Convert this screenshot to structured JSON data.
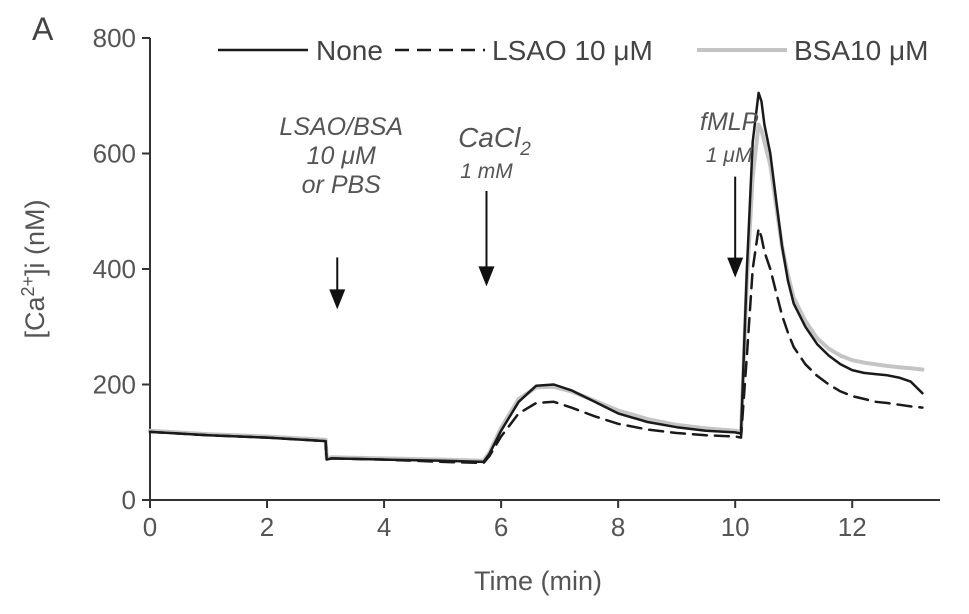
{
  "panel_label": "A",
  "chart_data": {
    "type": "line",
    "xlabel": "Time (min)",
    "ylabel": "[Ca",
    "ylabel_sup": "2+",
    "ylabel_suffix": "]i (nM)",
    "xlim": [
      0,
      13.5
    ],
    "ylim": [
      0,
      800
    ],
    "x_ticks": [
      0,
      2,
      4,
      6,
      8,
      10,
      12
    ],
    "y_ticks": [
      0,
      200,
      400,
      600,
      800
    ],
    "legend": {
      "position": "top"
    },
    "series": [
      {
        "name": "None",
        "color": "#1a1a1a",
        "dash": "solid",
        "x": [
          0,
          1,
          2,
          3,
          3.02,
          3.1,
          4,
          5,
          5.7,
          5.8,
          6.0,
          6.3,
          6.6,
          6.9,
          7.2,
          7.6,
          8.0,
          8.5,
          9.0,
          9.5,
          10.0,
          10.1,
          10.2,
          10.3,
          10.4,
          10.45,
          10.5,
          10.6,
          10.7,
          10.8,
          10.9,
          11.0,
          11.2,
          11.4,
          11.6,
          11.8,
          12.0,
          12.2,
          12.4,
          12.6,
          12.8,
          13.0,
          13.2
        ],
        "y": [
          118,
          112,
          108,
          102,
          70,
          72,
          70,
          68,
          66,
          80,
          120,
          170,
          198,
          200,
          190,
          170,
          150,
          135,
          126,
          120,
          117,
          115,
          400,
          620,
          705,
          690,
          650,
          600,
          520,
          440,
          380,
          340,
          300,
          270,
          250,
          235,
          225,
          220,
          218,
          216,
          212,
          205,
          185
        ]
      },
      {
        "name": "LSAO 10 μM",
        "color": "#1a1a1a",
        "dash": "dashed",
        "x": [
          0,
          1,
          2,
          3,
          3.02,
          3.1,
          4,
          5,
          5.7,
          5.8,
          6.0,
          6.3,
          6.6,
          6.9,
          7.2,
          7.6,
          8.0,
          8.5,
          9.0,
          9.5,
          10.0,
          10.1,
          10.2,
          10.3,
          10.4,
          10.45,
          10.5,
          10.6,
          10.7,
          10.8,
          10.9,
          11.0,
          11.2,
          11.4,
          11.6,
          11.8,
          12.0,
          12.2,
          12.4,
          12.6,
          12.8,
          13.0,
          13.2
        ],
        "y": [
          118,
          112,
          108,
          102,
          70,
          72,
          70,
          66,
          64,
          76,
          110,
          150,
          168,
          170,
          160,
          145,
          132,
          122,
          116,
          112,
          110,
          108,
          250,
          400,
          470,
          455,
          430,
          400,
          360,
          320,
          290,
          265,
          235,
          215,
          200,
          188,
          180,
          175,
          170,
          168,
          165,
          162,
          160
        ]
      },
      {
        "name": "BSA10 μM",
        "color": "#c4c4c4",
        "dash": "solid",
        "x": [
          0,
          1,
          2,
          3,
          3.02,
          3.1,
          4,
          5,
          5.7,
          5.8,
          6.0,
          6.3,
          6.6,
          6.9,
          7.2,
          7.6,
          8.0,
          8.5,
          9.0,
          9.5,
          10.0,
          10.1,
          10.2,
          10.3,
          10.4,
          10.45,
          10.5,
          10.6,
          10.7,
          10.8,
          10.9,
          11.0,
          11.2,
          11.4,
          11.6,
          11.8,
          12.0,
          12.2,
          12.4,
          12.6,
          12.8,
          13.0,
          13.2
        ],
        "y": [
          120,
          114,
          110,
          104,
          72,
          74,
          72,
          70,
          68,
          82,
          125,
          175,
          195,
          196,
          188,
          172,
          155,
          140,
          130,
          124,
          120,
          118,
          380,
          560,
          650,
          640,
          620,
          580,
          510,
          440,
          390,
          350,
          310,
          280,
          262,
          250,
          242,
          238,
          235,
          232,
          230,
          228,
          226
        ]
      }
    ],
    "annotations": [
      {
        "lines": [
          "LSAO/BSA",
          "10 μM",
          "or PBS"
        ],
        "x": 3.2,
        "arrow_from": 420,
        "arrow_to": 330
      },
      {
        "lines": [
          "CaCl"
        ],
        "sub": "2",
        "small": "1 mM",
        "x": 5.75,
        "arrow_from": 535,
        "arrow_to": 370
      },
      {
        "lines": [
          "fMLP"
        ],
        "small": "1 μM",
        "x": 10.0,
        "arrow_from": 560,
        "arrow_to": 385
      }
    ]
  }
}
